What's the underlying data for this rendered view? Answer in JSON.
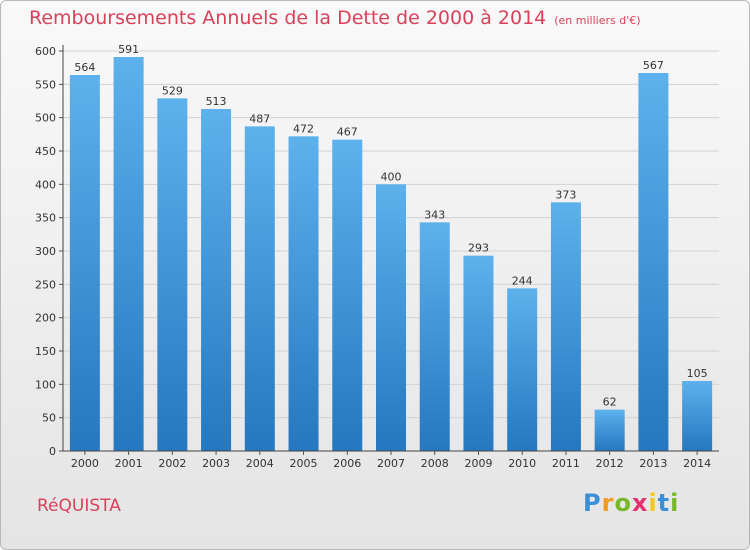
{
  "chart_data": {
    "type": "bar",
    "title": "Remboursements Annuels de la Dette de 2000 à 2014",
    "subtitle": "(en milliers d'€)",
    "categories": [
      "2000",
      "2001",
      "2002",
      "2003",
      "2004",
      "2005",
      "2006",
      "2007",
      "2008",
      "2009",
      "2010",
      "2011",
      "2012",
      "2013",
      "2014"
    ],
    "values": [
      564,
      591,
      529,
      513,
      487,
      472,
      467,
      400,
      343,
      293,
      244,
      373,
      62,
      567,
      105
    ],
    "ylim": [
      0,
      600
    ],
    "yticks": [
      0,
      50,
      100,
      150,
      200,
      250,
      300,
      350,
      400,
      450,
      500,
      550,
      600
    ],
    "grid": true,
    "bar_color_top": "#5db1ec",
    "bar_color_bottom": "#2577bf"
  },
  "footer": {
    "town": "RéQUISTA",
    "logo": {
      "letters": [
        "P",
        "r",
        "o",
        "x",
        "i",
        "t",
        "i"
      ],
      "colors": [
        "#3a8fd6",
        "#f29a1f",
        "#76b82a",
        "#e3326b",
        "#f2c81f",
        "#3a8fd6",
        "#76b82a"
      ]
    }
  },
  "colors": {
    "accent": "#d9415a"
  }
}
